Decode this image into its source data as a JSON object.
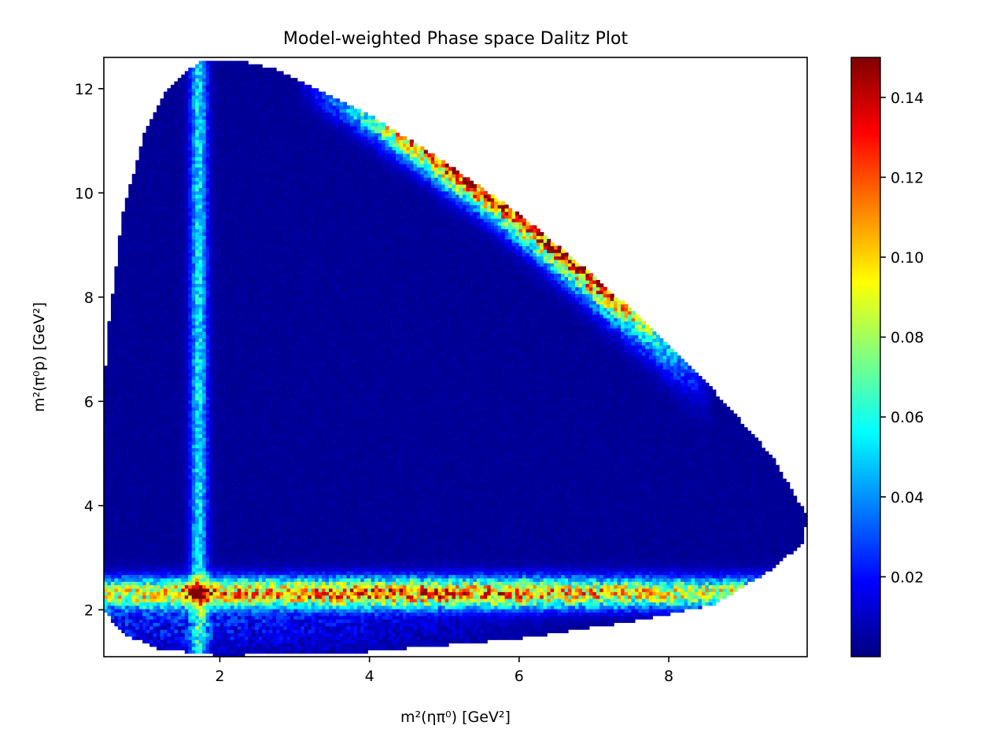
{
  "chart_data": {
    "type": "heatmap",
    "title": "Model-weighted Phase space Dalitz Plot",
    "xlabel": "m²(ηπ⁰) [GeV²]",
    "ylabel": "m²(π⁰p) [GeV²]",
    "xlim": [
      0.45,
      9.85
    ],
    "ylim": [
      1.1,
      12.6
    ],
    "x_ticks": [
      2,
      4,
      6,
      8
    ],
    "x_tick_labels": [
      "2",
      "4",
      "6",
      "8"
    ],
    "y_ticks": [
      2,
      4,
      6,
      8,
      10,
      12
    ],
    "y_tick_labels": [
      "2",
      "4",
      "6",
      "8",
      "10",
      "12"
    ],
    "colormap": "jet",
    "colorbar": {
      "range": [
        0.0,
        0.15
      ],
      "ticks": [
        0.02,
        0.04,
        0.06,
        0.08,
        0.1,
        0.12,
        0.14
      ],
      "tick_labels": [
        "0.02",
        "0.04",
        "0.06",
        "0.08",
        "0.10",
        "0.12",
        "0.14"
      ]
    },
    "boundary_points": [
      [
        0.45,
        6.2
      ],
      [
        0.5,
        7.3
      ],
      [
        0.7,
        9.6
      ],
      [
        1.0,
        11.2
      ],
      [
        1.3,
        12.0
      ],
      [
        1.7,
        12.5
      ],
      [
        2.2,
        12.55
      ],
      [
        2.7,
        12.4
      ],
      [
        3.3,
        12.0
      ],
      [
        4.0,
        11.5
      ],
      [
        5.0,
        10.6
      ],
      [
        6.0,
        9.6
      ],
      [
        7.0,
        8.4
      ],
      [
        8.0,
        7.1
      ],
      [
        8.8,
        5.9
      ],
      [
        9.4,
        4.9
      ],
      [
        9.85,
        3.8
      ],
      [
        9.8,
        3.3
      ],
      [
        9.4,
        2.8
      ],
      [
        8.6,
        2.1
      ],
      [
        7.6,
        1.8
      ],
      [
        6.0,
        1.45
      ],
      [
        4.0,
        1.2
      ],
      [
        2.0,
        1.12
      ],
      [
        1.2,
        1.25
      ],
      [
        0.7,
        1.55
      ],
      [
        0.45,
        2.0
      ]
    ],
    "bands": [
      {
        "name": "eta-pi0 resonance band",
        "orientation": "vertical",
        "center": 1.72,
        "width": 0.08,
        "peak_value": 0.05
      },
      {
        "name": "pi0-p resonance band",
        "orientation": "horizontal",
        "center": 2.33,
        "width": 0.2,
        "peak_value": 0.11
      },
      {
        "name": "kinematic edge enhancement",
        "orientation": "upper-edge",
        "peak_value": 0.13
      }
    ],
    "hotspot": {
      "x": 1.72,
      "y": 2.33,
      "value": 0.15
    },
    "background_value": 0.002
  }
}
